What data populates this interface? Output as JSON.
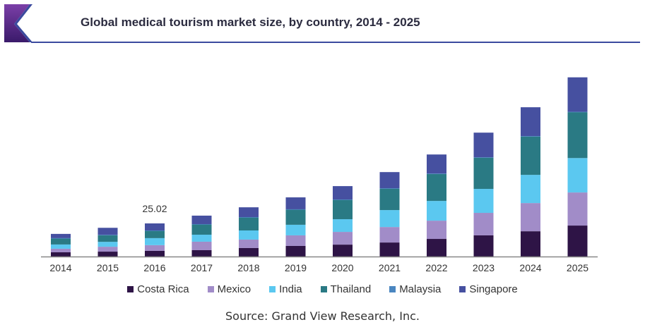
{
  "chart_data": {
    "type": "bar",
    "stacked": true,
    "title": "Global medical tourism market size, by country, 2014 - 2025",
    "xlabel": "",
    "ylabel": "",
    "categories": [
      "2014",
      "2015",
      "2016",
      "2017",
      "2018",
      "2019",
      "2020",
      "2021",
      "2022",
      "2023",
      "2024",
      "2025"
    ],
    "series": [
      {
        "name": "Costa Rica",
        "color": "#2e1446",
        "values": [
          3.2,
          3.7,
          4.3,
          4.8,
          6.4,
          8.0,
          9.0,
          10.6,
          13.3,
          16.0,
          19.1,
          23.4
        ]
      },
      {
        "name": "Mexico",
        "color": "#a18cc8",
        "values": [
          2.7,
          3.7,
          4.3,
          6.4,
          6.4,
          8.0,
          9.6,
          11.7,
          13.8,
          17.0,
          21.3,
          25.0
        ]
      },
      {
        "name": "India",
        "color": "#5bc8f0",
        "values": [
          3.2,
          3.7,
          5.3,
          5.3,
          6.9,
          8.0,
          9.6,
          12.8,
          14.9,
          18.1,
          21.3,
          26.0
        ]
      },
      {
        "name": "Thailand",
        "color": "#2a7a84",
        "values": [
          4.6,
          5.1,
          5.6,
          7.8,
          9.9,
          11.5,
          14.7,
          16.3,
          20.5,
          23.7,
          29.0,
          34.7
        ]
      },
      {
        "name": "Malaysia",
        "color": "#4a86c0",
        "values": [
          0.2,
          0.2,
          0.2,
          0.2,
          0.2,
          0.2,
          0.2,
          0.2,
          0.2,
          0.2,
          0.3,
          0.3
        ]
      },
      {
        "name": "Singapore",
        "color": "#4650a0",
        "values": [
          3.2,
          5.3,
          5.32,
          6.4,
          7.4,
          9.0,
          10.1,
          12.2,
          14.4,
          18.6,
          21.8,
          26.0
        ]
      }
    ],
    "annotations": [
      {
        "category": "2016",
        "text": "25.02"
      }
    ],
    "grid": false,
    "yaxis_visible": false,
    "legend_position": "bottom"
  },
  "source": "Source: Grand View Research, Inc."
}
